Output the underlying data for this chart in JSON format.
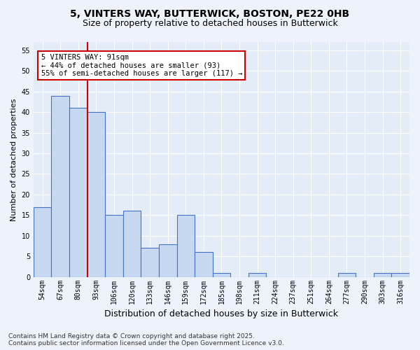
{
  "title_line1": "5, VINTERS WAY, BUTTERWICK, BOSTON, PE22 0HB",
  "title_line2": "Size of property relative to detached houses in Butterwick",
  "xlabel": "Distribution of detached houses by size in Butterwick",
  "ylabel": "Number of detached properties",
  "categories": [
    "54sqm",
    "67sqm",
    "80sqm",
    "93sqm",
    "106sqm",
    "120sqm",
    "133sqm",
    "146sqm",
    "159sqm",
    "172sqm",
    "185sqm",
    "198sqm",
    "211sqm",
    "224sqm",
    "237sqm",
    "251sqm",
    "264sqm",
    "277sqm",
    "290sqm",
    "303sqm",
    "316sqm"
  ],
  "values": [
    17,
    44,
    41,
    40,
    15,
    16,
    7,
    8,
    15,
    6,
    1,
    0,
    1,
    0,
    0,
    0,
    0,
    1,
    0,
    1,
    1
  ],
  "bar_color": "#c6d9f1",
  "bar_edge_color": "#4472c4",
  "vline_color": "#cc0000",
  "vline_pos": 2.5,
  "annotation_text": "5 VINTERS WAY: 91sqm\n← 44% of detached houses are smaller (93)\n55% of semi-detached houses are larger (117) →",
  "annotation_box_color": "#ffffff",
  "annotation_box_edge": "#cc0000",
  "ylim": [
    0,
    57
  ],
  "yticks": [
    0,
    5,
    10,
    15,
    20,
    25,
    30,
    35,
    40,
    45,
    50,
    55
  ],
  "footer_line1": "Contains HM Land Registry data © Crown copyright and database right 2025.",
  "footer_line2": "Contains public sector information licensed under the Open Government Licence v3.0.",
  "bg_color": "#edf2fb",
  "plot_bg_color": "#e4ecf7",
  "grid_color": "#ffffff",
  "title_fontsize": 10,
  "subtitle_fontsize": 9,
  "ylabel_fontsize": 8,
  "xlabel_fontsize": 9,
  "tick_fontsize": 7,
  "annotation_fontsize": 7.5,
  "footer_fontsize": 6.5
}
